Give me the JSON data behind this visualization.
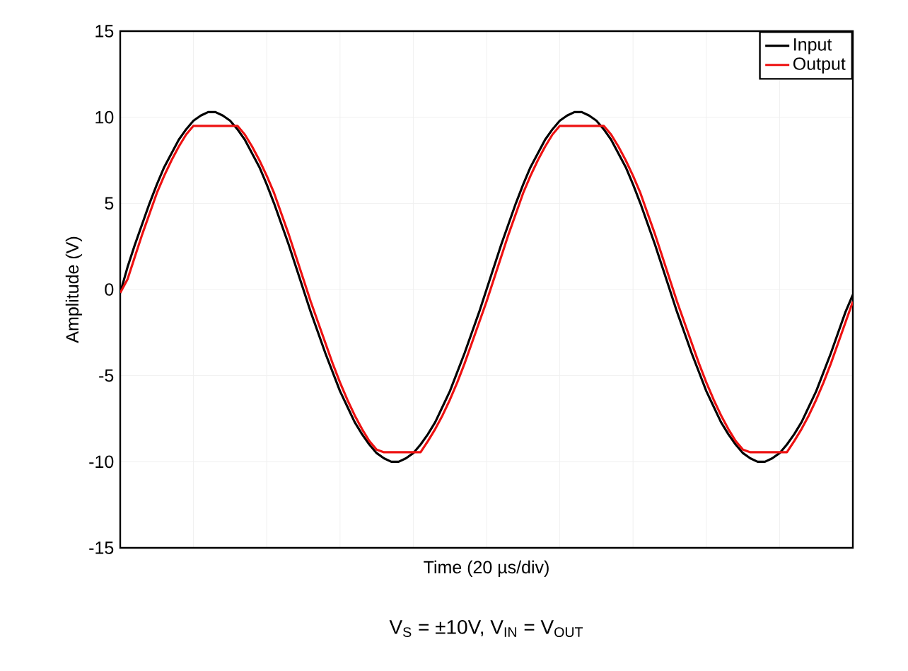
{
  "chart_data": {
    "type": "line",
    "xlabel": "Time (20 µs/div)",
    "ylabel": "Amplitude (V)",
    "annotations": [
      "V$_{S}$ = ±10V, V$_{IN}$ = V$_{OUT}$"
    ],
    "categories": [
      null,
      null,
      null,
      null,
      null,
      null,
      null,
      null,
      null,
      null,
      null,
      null,
      null,
      null,
      null,
      null,
      null,
      null,
      null,
      null,
      null,
      null,
      null,
      null,
      null,
      null,
      null,
      null,
      null,
      null,
      null,
      null,
      null,
      null,
      null,
      null,
      null,
      null,
      null,
      null,
      null,
      null,
      null,
      null,
      null,
      null,
      null,
      null,
      null,
      null,
      null,
      null,
      null,
      null,
      null,
      null,
      null,
      null,
      null,
      null,
      null,
      null,
      null,
      null,
      null,
      null,
      null,
      null,
      null,
      null,
      null,
      null,
      null,
      null,
      null,
      null,
      null,
      null,
      null,
      null,
      null,
      null,
      null,
      null,
      null,
      null,
      null,
      null,
      null,
      null,
      null,
      null,
      null,
      null,
      null,
      null,
      null,
      null,
      null,
      null,
      null
    ],
    "ylim": [
      -15,
      15
    ],
    "yticks": [
      -15,
      -10,
      -5,
      0,
      5,
      10,
      15
    ],
    "grid": true,
    "legend": "top right",
    "marker": "none",
    "line_style": "solid",
    "series": [
      {
        "name": "Input",
        "color": "#000000",
        "values": [
          -0.2,
          1.3,
          2.6,
          3.8,
          5.0,
          6.1,
          7.1,
          7.9,
          8.7,
          9.3,
          9.8,
          10.1,
          10.3,
          10.3,
          10.1,
          9.8,
          9.3,
          8.7,
          7.9,
          7.1,
          6.1,
          5.0,
          3.8,
          2.6,
          1.3,
          0,
          -1.3,
          -2.5,
          -3.7,
          -4.8,
          -5.9,
          -6.8,
          -7.7,
          -8.4,
          -9.0,
          -9.5,
          -9.8,
          -10.0,
          -10.0,
          -9.8,
          -9.5,
          -9.0,
          -8.4,
          -7.7,
          -6.8,
          -5.9,
          -4.8,
          -3.7,
          -2.5,
          -1.3,
          0,
          1.3,
          2.6,
          3.8,
          5.0,
          6.1,
          7.1,
          7.9,
          8.7,
          9.3,
          9.8,
          10.1,
          10.3,
          10.3,
          10.1,
          9.8,
          9.3,
          8.7,
          7.9,
          7.1,
          6.1,
          5.0,
          3.8,
          2.6,
          1.3,
          0,
          -1.3,
          -2.5,
          -3.7,
          -4.8,
          -5.9,
          -6.8,
          -7.7,
          -8.4,
          -9.0,
          -9.5,
          -9.8,
          -10.0,
          -10.0,
          -9.8,
          -9.5,
          -9.0,
          -8.4,
          -7.7,
          -6.8,
          -5.9,
          -4.8,
          -3.7,
          -2.5,
          -1.3,
          -0.3
        ]
      },
      {
        "name": "Output",
        "color": "#ee1111",
        "values": [
          -0.2,
          0.6,
          1.9,
          3.2,
          4.4,
          5.6,
          6.6,
          7.5,
          8.3,
          9.0,
          9.5,
          9.5,
          9.5,
          9.5,
          9.5,
          9.5,
          9.5,
          9.0,
          8.3,
          7.5,
          6.6,
          5.6,
          4.4,
          3.2,
          1.9,
          0.6,
          -0.7,
          -1.9,
          -3.1,
          -4.3,
          -5.4,
          -6.4,
          -7.3,
          -8.1,
          -8.8,
          -9.3,
          -9.45,
          -9.45,
          -9.45,
          -9.45,
          -9.45,
          -9.45,
          -8.8,
          -8.1,
          -7.3,
          -6.4,
          -5.4,
          -4.3,
          -3.1,
          -1.9,
          -0.7,
          0.6,
          1.9,
          3.2,
          4.4,
          5.6,
          6.6,
          7.5,
          8.3,
          9.0,
          9.5,
          9.5,
          9.5,
          9.5,
          9.5,
          9.5,
          9.5,
          9.0,
          8.3,
          7.5,
          6.6,
          5.6,
          4.4,
          3.2,
          1.9,
          0.6,
          -0.7,
          -1.9,
          -3.1,
          -4.3,
          -5.4,
          -6.4,
          -7.3,
          -8.1,
          -8.8,
          -9.3,
          -9.45,
          -9.45,
          -9.45,
          -9.45,
          -9.45,
          -9.45,
          -8.8,
          -8.1,
          -7.3,
          -6.4,
          -5.4,
          -4.3,
          -3.1,
          -1.9,
          -0.7
        ]
      }
    ]
  }
}
